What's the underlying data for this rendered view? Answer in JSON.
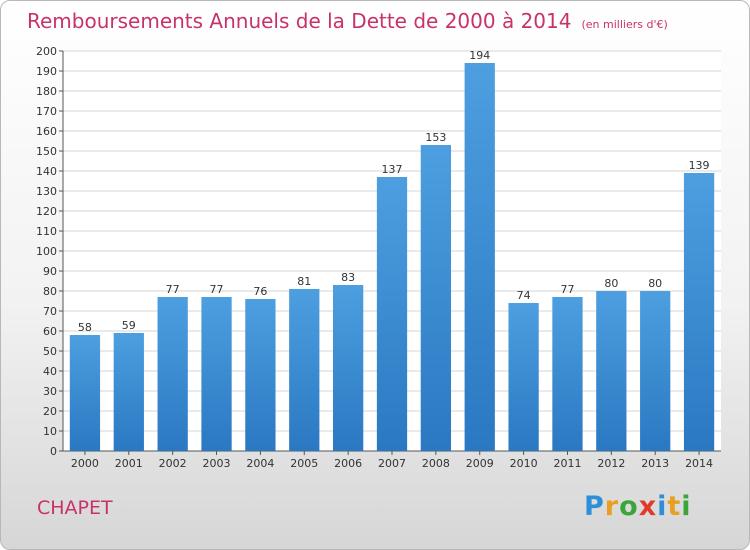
{
  "title": "Remboursements Annuels de la Dette de 2000 à 2014",
  "unit": "(en milliers d'€)",
  "commune": "CHAPET",
  "logo": {
    "text": "Proxiti",
    "letters": [
      {
        "ch": "P",
        "color": "#2e8fd8"
      },
      {
        "ch": "r",
        "color": "#e8a020"
      },
      {
        "ch": "o",
        "color": "#3aa63a"
      },
      {
        "ch": "x",
        "color": "#e23a2a"
      },
      {
        "ch": "i",
        "color": "#2e8fd8"
      },
      {
        "ch": "t",
        "color": "#e8a020"
      },
      {
        "ch": "i",
        "color": "#3aa63a"
      }
    ]
  },
  "chart_data": {
    "type": "bar",
    "categories": [
      "2000",
      "2001",
      "2002",
      "2003",
      "2004",
      "2005",
      "2006",
      "2007",
      "2008",
      "2009",
      "2010",
      "2011",
      "2012",
      "2013",
      "2014"
    ],
    "values": [
      58,
      59,
      77,
      77,
      76,
      81,
      83,
      137,
      153,
      194,
      74,
      77,
      80,
      80,
      139
    ],
    "ylim": [
      0,
      200
    ],
    "ytick_step": 10,
    "grid": true,
    "bar_color": "#4d9fe0",
    "bar_color_dark": "#2a78c2",
    "title_color": "#c8326a"
  }
}
